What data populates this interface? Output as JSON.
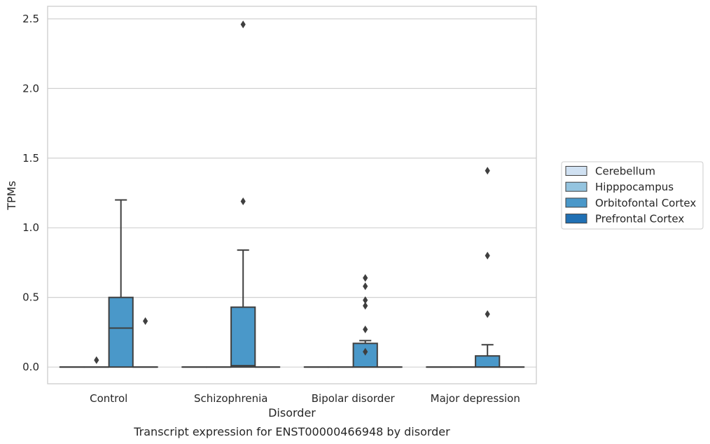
{
  "chart_data": {
    "type": "box",
    "title": "",
    "caption": "Transcript expression for ENST00000466948 by disorder",
    "xlabel": "Disorder",
    "ylabel": "TPMs",
    "ylim": [
      -0.12,
      2.59
    ],
    "yticks": [
      0.0,
      0.5,
      1.0,
      1.5,
      2.0,
      2.5
    ],
    "ytick_labels": [
      "0.0",
      "0.5",
      "1.0",
      "1.5",
      "2.0",
      "2.5"
    ],
    "grid": "horizontal",
    "legend_position": "right",
    "categories": [
      "Control",
      "Schizophrenia",
      "Bipolar disorder",
      "Major depression"
    ],
    "series": [
      {
        "name": "Cerebellum",
        "color": "#d0e1f2",
        "boxes": [
          {
            "category": "Control",
            "q1": 0,
            "median": 0,
            "q3": 0,
            "whisker_low": 0,
            "whisker_high": 0,
            "outliers": []
          },
          {
            "category": "Schizophrenia",
            "q1": 0,
            "median": 0,
            "q3": 0,
            "whisker_low": 0,
            "whisker_high": 0,
            "outliers": []
          },
          {
            "category": "Bipolar disorder",
            "q1": 0,
            "median": 0,
            "q3": 0,
            "whisker_low": 0,
            "whisker_high": 0,
            "outliers": []
          },
          {
            "category": "Major depression",
            "q1": 0,
            "median": 0,
            "q3": 0,
            "whisker_low": 0,
            "whisker_high": 0,
            "outliers": []
          }
        ]
      },
      {
        "name": "Hipppocampus",
        "color": "#94c4df",
        "boxes": [
          {
            "category": "Control",
            "q1": 0,
            "median": 0,
            "q3": 0,
            "whisker_low": 0,
            "whisker_high": 0,
            "outliers": [
              0.05
            ]
          },
          {
            "category": "Schizophrenia",
            "q1": 0,
            "median": 0,
            "q3": 0,
            "whisker_low": 0,
            "whisker_high": 0,
            "outliers": []
          },
          {
            "category": "Bipolar disorder",
            "q1": 0,
            "median": 0,
            "q3": 0,
            "whisker_low": 0,
            "whisker_high": 0,
            "outliers": []
          },
          {
            "category": "Major depression",
            "q1": 0,
            "median": 0,
            "q3": 0,
            "whisker_low": 0,
            "whisker_high": 0,
            "outliers": []
          }
        ]
      },
      {
        "name": "Orbitofontal Cortex",
        "color": "#4a98c9",
        "boxes": [
          {
            "category": "Control",
            "q1": 0,
            "median": 0.28,
            "q3": 0.5,
            "whisker_low": 0,
            "whisker_high": 1.2,
            "outliers": []
          },
          {
            "category": "Schizophrenia",
            "q1": 0,
            "median": 0.01,
            "q3": 0.43,
            "whisker_low": 0,
            "whisker_high": 0.84,
            "outliers": [
              1.19,
              2.46
            ]
          },
          {
            "category": "Bipolar disorder",
            "q1": 0,
            "median": 0,
            "q3": 0.17,
            "whisker_low": 0,
            "whisker_high": 0.19,
            "outliers": [
              0.11,
              0.27,
              0.44,
              0.48,
              0.58,
              0.64
            ]
          },
          {
            "category": "Major depression",
            "q1": 0,
            "median": 0,
            "q3": 0.08,
            "whisker_low": 0,
            "whisker_high": 0.16,
            "outliers": [
              0.38,
              0.8,
              1.41
            ]
          }
        ]
      },
      {
        "name": "Prefrontal Cortex",
        "color": "#2070b4",
        "boxes": [
          {
            "category": "Control",
            "q1": 0,
            "median": 0,
            "q3": 0,
            "whisker_low": 0,
            "whisker_high": 0,
            "outliers": [
              0.33
            ]
          },
          {
            "category": "Schizophrenia",
            "q1": 0,
            "median": 0,
            "q3": 0,
            "whisker_low": 0,
            "whisker_high": 0,
            "outliers": []
          },
          {
            "category": "Bipolar disorder",
            "q1": 0,
            "median": 0,
            "q3": 0,
            "whisker_low": 0,
            "whisker_high": 0,
            "outliers": []
          },
          {
            "category": "Major depression",
            "q1": 0,
            "median": 0,
            "q3": 0,
            "whisker_low": 0,
            "whisker_high": 0,
            "outliers": []
          }
        ]
      }
    ]
  }
}
